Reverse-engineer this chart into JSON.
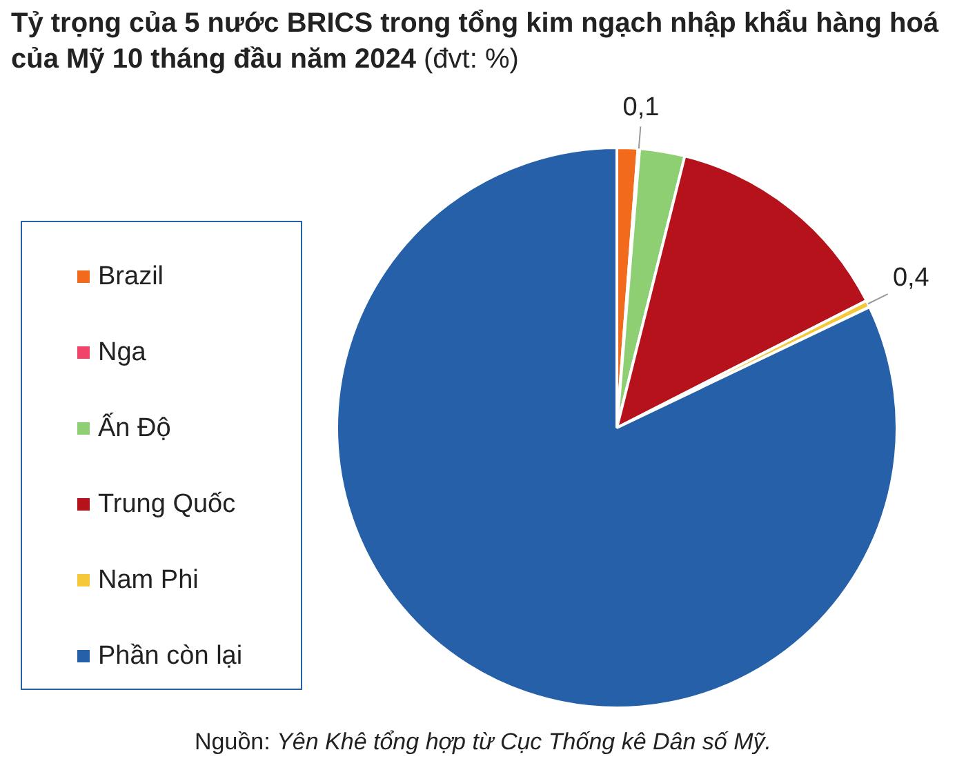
{
  "chart_data": {
    "type": "pie",
    "title": "Tỷ trọng của 5 nước BRICS trong tổng kim ngạch nhập khẩu hàng hoá của Mỹ 10 tháng đầu năm 2024 (đvt: %)",
    "categories": [
      "Brazil",
      "Nga",
      "Ấn Độ",
      "Trung Quốc",
      "Nam Phi",
      "Phần còn lại"
    ],
    "values": [
      1.2,
      0.1,
      2.6,
      13.6,
      0.4,
      82.1
    ],
    "colors": [
      "#f26b1d",
      "#f0446a",
      "#8fcf74",
      "#b5121b",
      "#f5c83a",
      "#2660a8"
    ],
    "value_labels": [
      null,
      "0,1",
      null,
      null,
      "0,4",
      null
    ],
    "legend": "left",
    "annotations": [
      "Nguồn: Yên Khê tổng hợp từ Cục Thống kê Dân số Mỹ."
    ]
  }
}
